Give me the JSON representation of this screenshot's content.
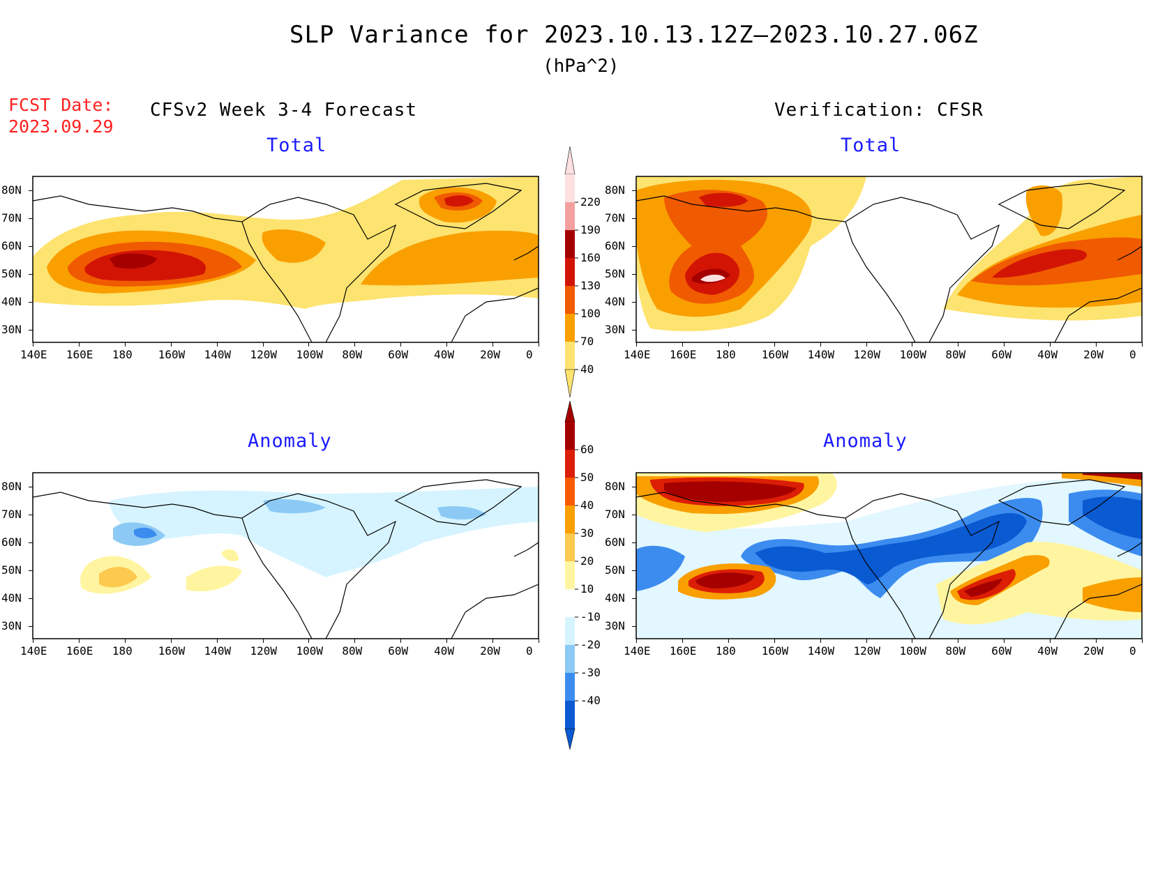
{
  "title": "SLP Variance for 2023.10.13.12Z—2023.10.27.06Z",
  "units": "(hPa^2)",
  "fcst_date": {
    "label": "FCST Date:",
    "value": "2023.09.29"
  },
  "left_header": "CFSv2 Week 3-4 Forecast",
  "right_header": "Verification: CFSR",
  "panels": [
    {
      "label": "Total"
    },
    {
      "label": "Total"
    },
    {
      "label": "Anomaly"
    },
    {
      "label": "Anomaly"
    }
  ],
  "x_ticks": [
    "140E",
    "160E",
    "180",
    "160W",
    "140W",
    "120W",
    "100W",
    "80W",
    "60W",
    "40W",
    "20W",
    "0"
  ],
  "y_ticks": [
    "80N",
    "70N",
    "60N",
    "50N",
    "40N",
    "30N"
  ],
  "colorbar_total": {
    "labels": [
      "220",
      "190",
      "160",
      "130",
      "100",
      "70",
      "40"
    ],
    "colors": [
      "#fde0e0",
      "#f4a0a0",
      "#a50000",
      "#d21405",
      "#f05a00",
      "#f99f00",
      "#fde36f"
    ]
  },
  "colorbar_anom": {
    "labels": [
      "60",
      "50",
      "40",
      "30",
      "20",
      "10",
      "-10",
      "-20",
      "-30",
      "-40"
    ],
    "colors": [
      "#a50000",
      "#dc1e05",
      "#f85a00",
      "#f99f00",
      "#fdc94e",
      "#fff5a0",
      "#ffffff",
      "#d6f4ff",
      "#8ccaf5",
      "#3c8cf0",
      "#0a5ad2"
    ]
  },
  "colors": {
    "low": "#fde36f",
    "orange": "#f99f00",
    "darkorange": "#f05a00",
    "red": "#d21405",
    "darkred": "#a50000",
    "pink": "#f4a0a0",
    "lightpink": "#fde0e0",
    "lightblue": "#d6f4ff",
    "blue": "#8ccaf5",
    "midblue": "#3c8cf0",
    "darkblue": "#0a5ad2"
  }
}
